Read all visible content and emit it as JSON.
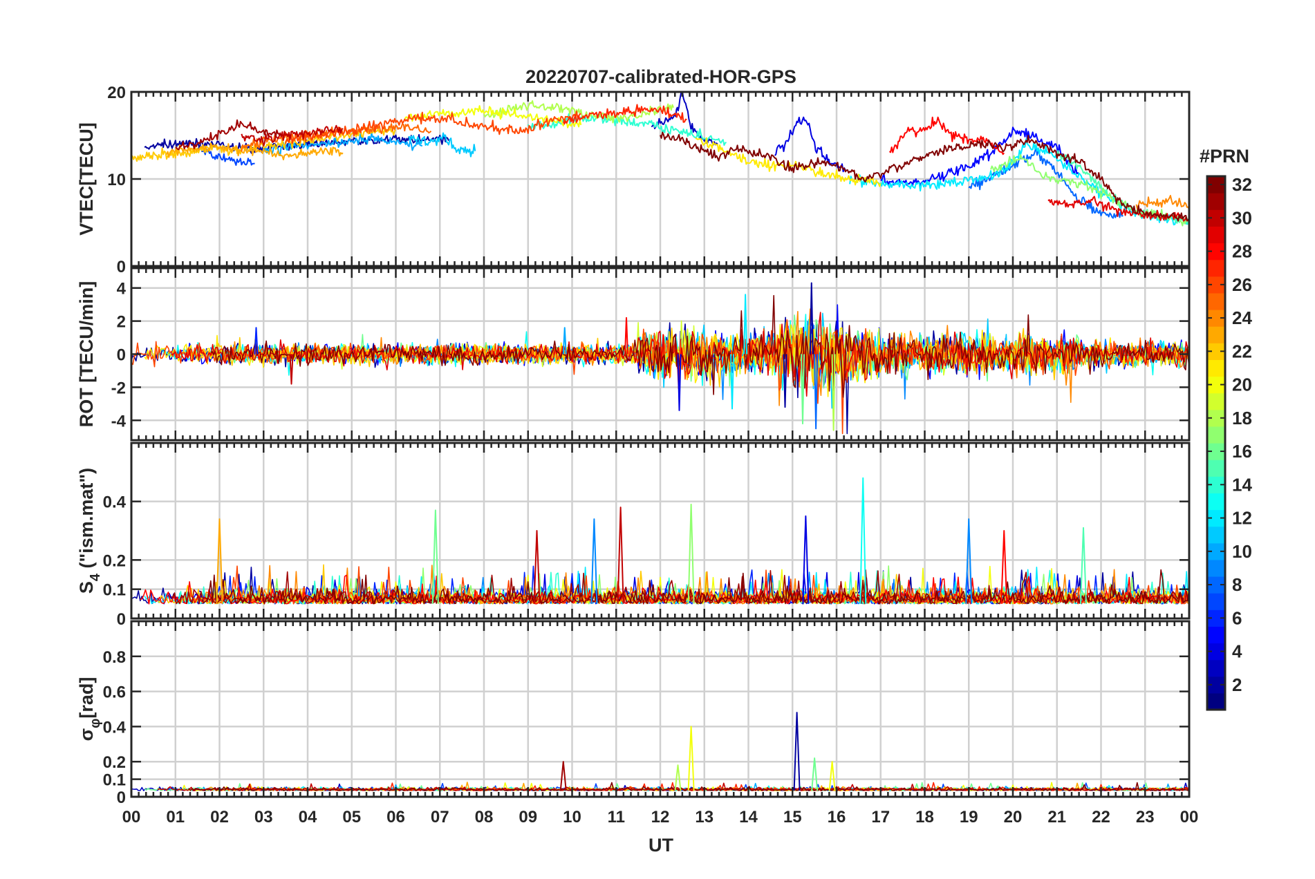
{
  "chart_data": {
    "type": "line",
    "title": "20220707-calibrated-HOR-GPS",
    "xlabel": "UT",
    "x_tick_labels": [
      "00",
      "01",
      "02",
      "03",
      "04",
      "05",
      "06",
      "07",
      "08",
      "09",
      "10",
      "11",
      "12",
      "13",
      "14",
      "15",
      "16",
      "17",
      "18",
      "19",
      "20",
      "21",
      "22",
      "23",
      "00"
    ],
    "xlim": [
      0,
      24
    ],
    "grid": true,
    "colorbar": {
      "label": "#PRN",
      "range": [
        1,
        32
      ],
      "ticks": [
        2,
        4,
        6,
        8,
        10,
        12,
        14,
        16,
        18,
        20,
        22,
        24,
        26,
        28,
        30,
        32
      ],
      "tick_labels": [
        "2",
        "4",
        "6",
        "8",
        "10",
        "12",
        "14",
        "16",
        "18",
        "20",
        "22",
        "24",
        "26",
        "28",
        "30",
        "32"
      ],
      "colormap": "jet",
      "placement": "right"
    },
    "panels": [
      {
        "id": "vtec",
        "ylabel": "VTEC[TECU]",
        "ylim": [
          0,
          20
        ],
        "y_ticks": [
          0,
          10,
          20
        ],
        "y_tick_labels": [
          "0",
          "10",
          "20"
        ],
        "series": [
          {
            "prn": 2,
            "x": [
              0.3,
              1.2,
              2.0,
              2.8,
              3.5,
              4.2,
              5.0,
              5.8,
              6.5,
              7.2
            ],
            "y": [
              13.5,
              14.2,
              13.8,
              13.5,
              13.8,
              14.0,
              14.3,
              14.5,
              14.6,
              14.4
            ]
          },
          {
            "prn": 3,
            "x": [
              11.8,
              12.1,
              12.35,
              12.5,
              12.7,
              13.0,
              13.3
            ],
            "y": [
              16.0,
              16.5,
              17.5,
              20.0,
              16.0,
              14.5,
              14.0
            ]
          },
          {
            "prn": 4,
            "x": [
              14.6,
              14.9,
              15.1,
              15.3,
              15.5,
              15.8,
              16.2
            ],
            "y": [
              13.0,
              14.5,
              16.5,
              17.0,
              14.0,
              12.0,
              11.0
            ]
          },
          {
            "prn": 5,
            "x": [
              17.0,
              17.5,
              18.0,
              18.5,
              19.0,
              19.5,
              20.0,
              20.5,
              21.0,
              21.5
            ],
            "y": [
              10.0,
              9.5,
              9.8,
              10.5,
              11.5,
              13.0,
              15.3,
              15.0,
              13.5,
              10.5
            ]
          },
          {
            "prn": 7,
            "x": [
              1.5,
              2.0,
              2.5,
              2.8
            ],
            "y": [
              13.5,
              12.5,
              12.0,
              11.8
            ]
          },
          {
            "prn": 8,
            "x": [
              19.0,
              19.5,
              20.0,
              20.5,
              21.0,
              21.5,
              22.0,
              22.5
            ],
            "y": [
              9.0,
              10.0,
              11.5,
              13.0,
              11.0,
              7.5,
              6.0,
              5.8
            ]
          },
          {
            "prn": 10,
            "x": [
              3.0,
              3.7,
              4.5,
              5.2,
              6.0,
              6.6
            ],
            "y": [
              13.2,
              13.8,
              14.0,
              14.6,
              14.3,
              13.8
            ]
          },
          {
            "prn": 11,
            "x": [
              6.3,
              6.8,
              7.1,
              7.4,
              7.8
            ],
            "y": [
              14.6,
              14.2,
              14.8,
              13.5,
              13.2
            ]
          },
          {
            "prn": 12,
            "x": [
              16.3,
              17.0,
              17.8,
              18.5,
              19.2,
              19.8,
              20.3,
              21.0,
              21.8,
              22.8,
              24.0
            ],
            "y": [
              10.0,
              9.5,
              9.2,
              9.5,
              10.0,
              11.0,
              14.0,
              12.5,
              9.0,
              6.0,
              5.0
            ]
          },
          {
            "prn": 14,
            "x": [
              9.0,
              9.5,
              10.0,
              10.6,
              11.2,
              11.8,
              12.4,
              12.9,
              13.5
            ],
            "y": [
              16.0,
              16.3,
              16.8,
              17.0,
              16.5,
              16.2,
              15.5,
              15.0,
              14.2
            ]
          },
          {
            "prn": 15,
            "x": [
              21.0,
              21.5,
              22.0,
              22.5,
              23.0,
              23.5,
              24.0
            ],
            "y": [
              13.0,
              11.5,
              9.0,
              7.0,
              6.0,
              5.5,
              5.0
            ]
          },
          {
            "prn": 17,
            "x": [
              19.5,
              20.2,
              20.8,
              21.5,
              22.0,
              22.5,
              23.2,
              24.0
            ],
            "y": [
              11.0,
              12.5,
              10.0,
              9.5,
              8.5,
              7.0,
              6.0,
              5.2
            ]
          },
          {
            "prn": 18,
            "x": [
              8.0,
              8.6,
              9.2,
              9.9,
              10.5,
              11.1,
              11.7,
              12.3
            ],
            "y": [
              17.0,
              18.2,
              18.4,
              18.0,
              17.2,
              17.0,
              17.6,
              18.2
            ]
          },
          {
            "prn": 20,
            "x": [
              6.2,
              6.8,
              7.4,
              8.0,
              8.6,
              9.2,
              9.8,
              10.2
            ],
            "y": [
              17.0,
              17.3,
              17.6,
              17.8,
              17.5,
              17.0,
              16.5,
              16.2
            ]
          },
          {
            "prn": 21,
            "x": [
              12.8,
              13.4,
              14.0,
              14.6,
              15.2,
              15.8,
              16.4,
              17.0
            ],
            "y": [
              14.5,
              13.5,
              12.0,
              11.5,
              11.5,
              10.5,
              10.0,
              9.5
            ]
          },
          {
            "prn": 22,
            "x": [
              0.0,
              0.6,
              1.2,
              1.8,
              2.4,
              3.0,
              3.6,
              4.2,
              4.8,
              5.4,
              6.0
            ],
            "y": [
              12.5,
              12.8,
              13.0,
              13.6,
              13.3,
              13.8,
              14.2,
              14.6,
              15.0,
              15.4,
              15.6
            ]
          },
          {
            "prn": 23,
            "x": [
              0.8,
              1.4,
              2.0,
              2.6,
              3.2,
              3.8,
              4.4,
              4.8
            ],
            "y": [
              13.0,
              13.5,
              13.6,
              13.2,
              13.0,
              12.8,
              13.2,
              13.0
            ]
          },
          {
            "prn": 24,
            "x": [
              22.8,
              23.2,
              23.6,
              24.0
            ],
            "y": [
              7.0,
              7.3,
              7.6,
              6.5
            ]
          },
          {
            "prn": 25,
            "x": [
              2.5,
              3.2,
              3.8,
              4.5,
              5.0,
              5.6,
              6.2,
              6.8
            ],
            "y": [
              13.8,
              14.5,
              15.0,
              15.2,
              15.5,
              15.8,
              16.0,
              15.5
            ]
          },
          {
            "prn": 26,
            "x": [
              3.5,
              4.2,
              5.0,
              5.8,
              6.5,
              7.2,
              8.0,
              8.8,
              9.5,
              10.2
            ],
            "y": [
              14.5,
              15.0,
              15.5,
              16.5,
              17.0,
              16.8,
              16.0,
              15.5,
              16.5,
              17.5
            ]
          },
          {
            "prn": 27,
            "x": [
              9.8,
              10.4,
              11.0,
              11.6,
              12.2,
              12.6
            ],
            "y": [
              16.5,
              17.2,
              17.5,
              18.0,
              17.6,
              16.8
            ]
          },
          {
            "prn": 28,
            "x": [
              17.2,
              17.6,
              18.0,
              18.3,
              18.6,
              19.0,
              19.4,
              19.8
            ],
            "y": [
              13.0,
              15.5,
              15.5,
              16.8,
              15.0,
              14.5,
              14.5,
              13.0
            ]
          },
          {
            "prn": 29,
            "x": [
              20.8,
              21.3,
              21.8,
              22.3,
              22.8,
              23.3,
              24.0
            ],
            "y": [
              7.5,
              7.0,
              7.5,
              6.5,
              6.0,
              5.8,
              5.5
            ]
          },
          {
            "prn": 30,
            "x": [
              2.5,
              3.0,
              3.6,
              4.2,
              4.8
            ],
            "y": [
              15.0,
              14.5,
              15.0,
              15.5,
              15.8
            ]
          },
          {
            "prn": 31,
            "x": [
              1.0,
              1.5,
              2.0,
              2.5,
              2.9,
              3.4
            ],
            "y": [
              13.5,
              14.0,
              15.2,
              16.3,
              15.5,
              15.0
            ]
          },
          {
            "prn": 32,
            "x": [
              12.0,
              12.6,
              13.2,
              13.8,
              14.4,
              15.0,
              15.6,
              16.2,
              16.6,
              18.5,
              19.2,
              19.8,
              20.4,
              21.0,
              21.5,
              22.0,
              22.5,
              23.0,
              23.5,
              24.0
            ],
            "y": [
              15.0,
              14.5,
              12.5,
              13.5,
              12.8,
              11.0,
              12.0,
              11.0,
              10.0,
              13.5,
              14.0,
              13.5,
              14.5,
              13.0,
              12.0,
              10.0,
              7.0,
              6.0,
              5.8,
              5.5
            ]
          }
        ]
      },
      {
        "id": "rot",
        "ylabel": "ROT [TECU/min]",
        "ylim": [
          -5.2,
          5.2
        ],
        "y_ticks": [
          -4,
          -2,
          0,
          2,
          4
        ],
        "y_tick_labels": [
          "-4",
          "-2",
          "0",
          "2",
          "4"
        ],
        "summary": "Noise around 0 within about ±0.6 TECU/min from 00 to 11 UT, enhanced fluctuation from about 11.5 to 17 UT with extremes near +4.3 (15.4 UT) and -4.6 (15.9 UT), moderate ±1.5 activity from 17 to 24 UT."
      },
      {
        "id": "s4",
        "ylabel": "S",
        "ylabel_sub": "4",
        "ylabel_suffix": " (\"ism.mat\")",
        "ylim": [
          0,
          0.6
        ],
        "y_ticks": [
          0,
          0.1,
          0.2,
          0.4
        ],
        "y_tick_labels": [
          "0",
          "0.1",
          "0.2",
          "0.4"
        ],
        "peaks": [
          {
            "x": 2.0,
            "y": 0.34
          },
          {
            "x": 6.9,
            "y": 0.37
          },
          {
            "x": 9.2,
            "y": 0.3
          },
          {
            "x": 10.5,
            "y": 0.34
          },
          {
            "x": 11.1,
            "y": 0.38
          },
          {
            "x": 12.7,
            "y": 0.39
          },
          {
            "x": 15.3,
            "y": 0.35
          },
          {
            "x": 16.6,
            "y": 0.48
          },
          {
            "x": 19.0,
            "y": 0.34
          },
          {
            "x": 19.8,
            "y": 0.3
          },
          {
            "x": 21.6,
            "y": 0.31
          }
        ]
      },
      {
        "id": "sigma_phi",
        "ylabel": "σ",
        "ylabel_sub": "φ",
        "ylabel_suffix": "[rad]",
        "ylim": [
          0,
          1.0
        ],
        "y_ticks": [
          0,
          0.1,
          0.2,
          0.4,
          0.6,
          0.8
        ],
        "y_tick_labels": [
          "0",
          "0.1",
          "0.2",
          "0.4",
          "0.6",
          "0.8"
        ],
        "peaks": [
          {
            "x": 9.8,
            "y": 0.2
          },
          {
            "x": 12.4,
            "y": 0.18
          },
          {
            "x": 12.7,
            "y": 0.4
          },
          {
            "x": 15.1,
            "y": 0.48
          },
          {
            "x": 15.5,
            "y": 0.22
          },
          {
            "x": 15.9,
            "y": 0.2
          }
        ]
      }
    ]
  }
}
